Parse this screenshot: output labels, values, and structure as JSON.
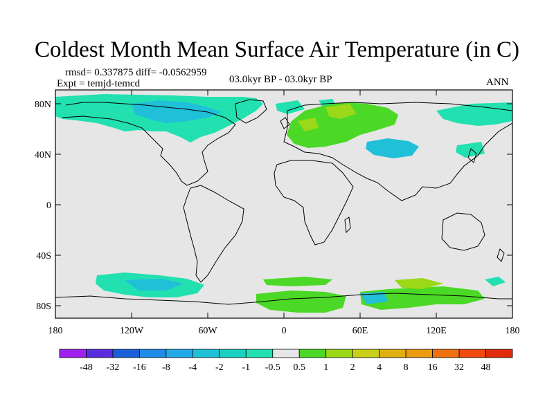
{
  "title": "Coldest Month Mean Surface Air Temperature (in C)",
  "stats": "rmsd= 0.337875 diff= -0.0562959",
  "experiment": "Expt = temjd-temcd",
  "period": "03.0kyr BP - 03.0kyr BP",
  "season": "ANN",
  "lat_ticks": [
    "80N",
    "40N",
    "0",
    "40S",
    "80S"
  ],
  "lon_ticks": [
    "180",
    "120W",
    "60W",
    "0",
    "60E",
    "120E",
    "180"
  ],
  "colorbar": {
    "labels": [
      "-48",
      "-32",
      "-16",
      "-8",
      "-4",
      "-2",
      "-1",
      "-0.5",
      "0.5",
      "1",
      "2",
      "4",
      "8",
      "16",
      "32",
      "48"
    ],
    "colors": [
      "#a020f0",
      "#5a2ce0",
      "#1a5fd8",
      "#1e8be6",
      "#22a8e6",
      "#1fc0d8",
      "#1ad0c0",
      "#22e0b0",
      "#e6e6e6",
      "#4cd826",
      "#9ad818",
      "#c8d018",
      "#e0b010",
      "#ec9a10",
      "#f07010",
      "#f04a10",
      "#e02a0a"
    ]
  },
  "colors": {
    "background": "#e6e6e6",
    "cool_anomaly": "#22e0b0",
    "cool_anomaly_strong": "#1fc0d8",
    "warm_anomaly": "#4cd826",
    "warm_anomaly_strong": "#9ad818",
    "coastline": "#000000"
  }
}
